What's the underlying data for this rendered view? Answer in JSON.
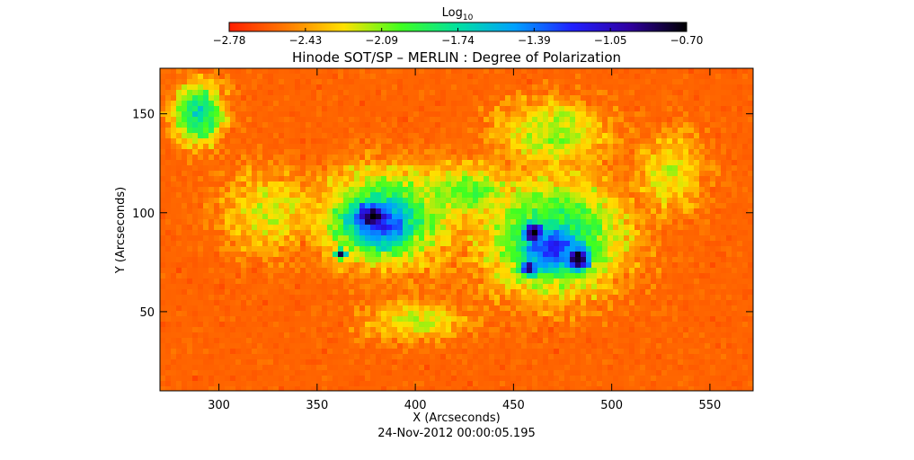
{
  "chart_data": {
    "type": "heatmap",
    "title": "Hinode SOT/SP – MERLIN : Degree of Polarization",
    "xlabel": "X (Arcseconds)",
    "ylabel": "Y (Arcseconds)",
    "xlim": [
      270,
      572
    ],
    "ylim": [
      10,
      173
    ],
    "x_ticks": [
      300,
      350,
      400,
      450,
      500,
      550
    ],
    "y_ticks": [
      50,
      100,
      150
    ],
    "timestamp": "24-Nov-2012 00:00:05.195",
    "colorbar": {
      "label_base": "Log",
      "label_sub": "10",
      "range": [
        -2.78,
        -0.7
      ],
      "tick_labels": [
        "−2.78",
        "−2.43",
        "−2.09",
        "−1.74",
        "−1.39",
        "−1.05",
        "−0.70"
      ],
      "colormap": [
        "#ff1f00",
        "#ff7a00",
        "#ffe000",
        "#40ff20",
        "#00e0a0",
        "#00a0ff",
        "#2020ff",
        "#3000a0",
        "#000000"
      ]
    },
    "background_level": -2.7,
    "features": [
      {
        "name": "west sunspot",
        "x": 378,
        "y": 98,
        "rx": 16,
        "ry": 11,
        "level": -0.72
      },
      {
        "name": "west penumbra",
        "x": 382,
        "y": 95,
        "rx": 30,
        "ry": 22,
        "level": -1.2
      },
      {
        "name": "west outer",
        "x": 385,
        "y": 98,
        "rx": 45,
        "ry": 33,
        "level": -1.8
      },
      {
        "name": "small spot",
        "x": 362,
        "y": 79,
        "rx": 4,
        "ry": 4,
        "level": -0.8
      },
      {
        "name": "east sunspot 1",
        "x": 460,
        "y": 90,
        "rx": 9,
        "ry": 8,
        "level": -0.72
      },
      {
        "name": "east sunspot 2",
        "x": 483,
        "y": 77,
        "rx": 10,
        "ry": 10,
        "level": -0.72
      },
      {
        "name": "east sunspot 3",
        "x": 458,
        "y": 72,
        "rx": 7,
        "ry": 6,
        "level": -0.75
      },
      {
        "name": "east penumbra",
        "x": 470,
        "y": 82,
        "rx": 28,
        "ry": 22,
        "level": -1.2
      },
      {
        "name": "east outer",
        "x": 470,
        "y": 88,
        "rx": 50,
        "ry": 40,
        "level": -1.8
      },
      {
        "name": "plage bridge",
        "x": 425,
        "y": 110,
        "rx": 40,
        "ry": 20,
        "level": -2.0
      },
      {
        "name": "west plage",
        "x": 325,
        "y": 100,
        "rx": 35,
        "ry": 30,
        "level": -2.2
      },
      {
        "name": "north plage",
        "x": 470,
        "y": 140,
        "rx": 40,
        "ry": 25,
        "level": -2.1
      },
      {
        "name": "northwest network",
        "x": 290,
        "y": 150,
        "rx": 18,
        "ry": 20,
        "level": -1.7
      },
      {
        "name": "east network",
        "x": 530,
        "y": 120,
        "rx": 25,
        "ry": 30,
        "level": -2.2
      },
      {
        "name": "south network",
        "x": 400,
        "y": 45,
        "rx": 40,
        "ry": 15,
        "level": -2.2
      }
    ]
  }
}
